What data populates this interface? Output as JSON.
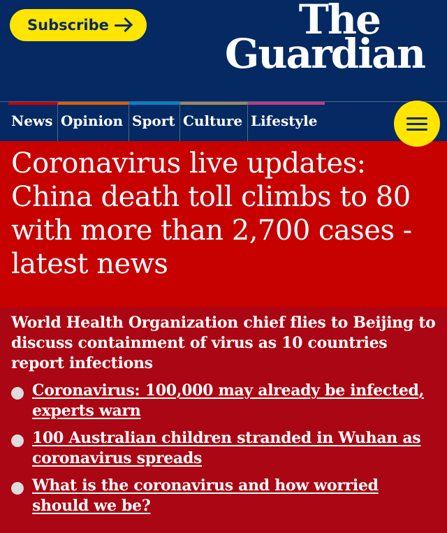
{
  "header": {
    "subscribe_label": "Subscribe",
    "logo_line1": "The",
    "logo_line2": "Guardian"
  },
  "nav": {
    "items": [
      {
        "label": "News",
        "color": "#c70000"
      },
      {
        "label": "Opinion",
        "color": "#e05e00"
      },
      {
        "label": "Sport",
        "color": "#0084c6"
      },
      {
        "label": "Culture",
        "color": "#a1845c"
      },
      {
        "label": "Lifestyle",
        "color": "#bb3b80"
      }
    ],
    "menu_icon": "hamburger-menu-icon"
  },
  "article": {
    "headline": "Coronavirus live updates: China death toll climbs to 80 with more than 2,700 cases - latest news",
    "standfirst": "World Health Organization chief flies to Beijing to discuss containment of virus as 10 countries report infections",
    "links": [
      "Coronavirus: 100,000 may already be infected, experts warn",
      "100 Australian children stranded in Wuhan as coronavirus spreads",
      "What is the coronavirus and how worried should we be?"
    ]
  },
  "colors": {
    "brand_blue": "#052962",
    "accent_yellow": "#ffe500",
    "headline_red": "#c70000",
    "standfirst_red": "#ab0613"
  }
}
